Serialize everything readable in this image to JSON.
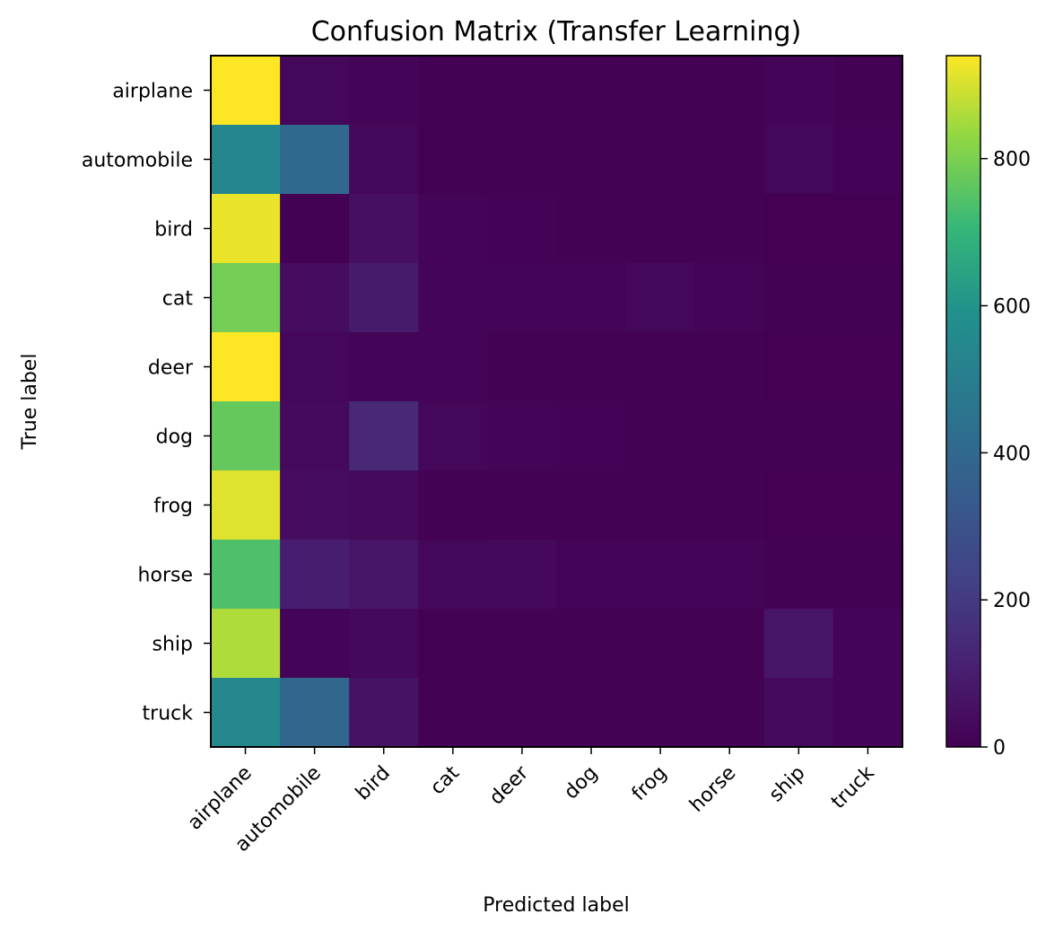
{
  "chart_data": {
    "type": "heatmap",
    "title": "Confusion Matrix (Transfer Learning)",
    "xlabel": "Predicted label",
    "ylabel": "True label",
    "x_categories": [
      "airplane",
      "automobile",
      "bird",
      "cat",
      "deer",
      "dog",
      "frog",
      "horse",
      "ship",
      "truck"
    ],
    "y_categories": [
      "airplane",
      "automobile",
      "bird",
      "cat",
      "deer",
      "dog",
      "frog",
      "horse",
      "ship",
      "truck"
    ],
    "values": [
      [
        940,
        20,
        10,
        2,
        2,
        2,
        2,
        2,
        15,
        5
      ],
      [
        540,
        400,
        20,
        5,
        3,
        2,
        2,
        2,
        20,
        6
      ],
      [
        920,
        2,
        50,
        10,
        8,
        5,
        3,
        2,
        0,
        0
      ],
      [
        790,
        40,
        90,
        15,
        15,
        10,
        20,
        10,
        5,
        5
      ],
      [
        940,
        20,
        15,
        10,
        5,
        5,
        3,
        2,
        0,
        0
      ],
      [
        770,
        30,
        140,
        20,
        15,
        8,
        5,
        5,
        5,
        2
      ],
      [
        910,
        40,
        30,
        5,
        5,
        3,
        3,
        3,
        0,
        0
      ],
      [
        740,
        100,
        70,
        20,
        25,
        10,
        10,
        10,
        5,
        5
      ],
      [
        860,
        15,
        25,
        5,
        5,
        3,
        3,
        5,
        70,
        10
      ],
      [
        550,
        390,
        60,
        5,
        3,
        2,
        2,
        2,
        30,
        10
      ]
    ],
    "colormap": "viridis",
    "colorbar": {
      "min": 0,
      "max": 940,
      "ticks": [
        0,
        200,
        400,
        600,
        800
      ]
    }
  }
}
